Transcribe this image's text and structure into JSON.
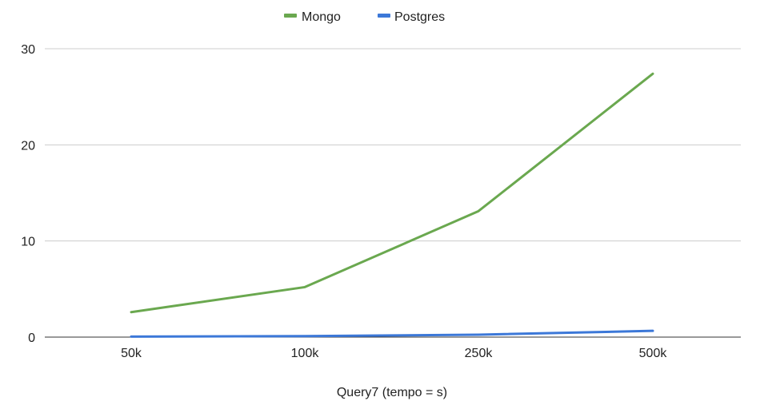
{
  "chart_data": {
    "type": "line",
    "categories": [
      "50k",
      "100k",
      "250k",
      "500k"
    ],
    "series": [
      {
        "name": "Mongo",
        "values": [
          2.6,
          5.2,
          13.1,
          27.4
        ],
        "color": "#6aa84f"
      },
      {
        "name": "Postgres",
        "values": [
          0.05,
          0.1,
          0.25,
          0.65
        ],
        "color": "#3c78d8"
      }
    ],
    "title": "",
    "xlabel": "Query7 (tempo = s)",
    "ylabel": "",
    "ylim": [
      0,
      30
    ],
    "yticks": [
      "0",
      "10",
      "20",
      "30"
    ],
    "grid": true,
    "legend": "top-center",
    "gridline_color": "#cccccc",
    "baseline_color": "#333333"
  }
}
